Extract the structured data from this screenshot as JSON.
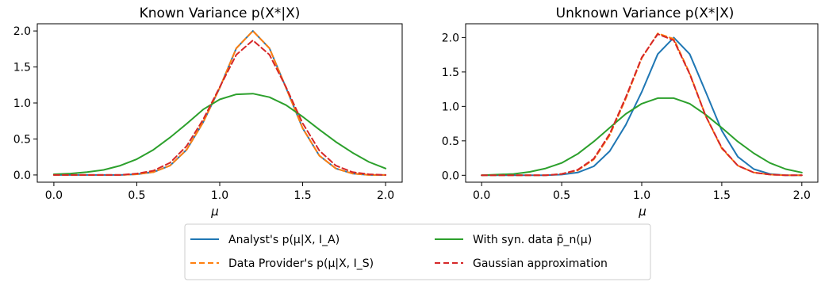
{
  "chart_data": [
    {
      "type": "line",
      "title": "Known Variance p(X*|X)",
      "xlabel": "μ",
      "ylabel": "",
      "xlim": [
        -0.1,
        2.1
      ],
      "ylim": [
        -0.1,
        2.1
      ],
      "xticks": [
        "0.0",
        "0.5",
        "1.0",
        "1.5",
        "2.0"
      ],
      "yticks": [
        "0.0",
        "0.5",
        "1.0",
        "1.5",
        "2.0"
      ],
      "grid": false,
      "series": [
        {
          "name": "Analyst's p(μ|X, I_A)",
          "color": "#1f77b4",
          "style": "solid",
          "x": [
            0.0,
            0.1,
            0.2,
            0.3,
            0.4,
            0.5,
            0.6,
            0.7,
            0.8,
            0.9,
            1.0,
            1.1,
            1.2,
            1.3,
            1.4,
            1.5,
            1.6,
            1.7,
            1.8,
            1.9,
            2.0
          ],
          "y": [
            0.0,
            0.0,
            0.0,
            0.0,
            0.0,
            0.01,
            0.04,
            0.13,
            0.35,
            0.73,
            1.21,
            1.76,
            2.0,
            1.76,
            1.21,
            0.65,
            0.27,
            0.09,
            0.02,
            0.0,
            0.0
          ]
        },
        {
          "name": "Data Provider's p(μ|X, I_S)",
          "color": "#ff7f0e",
          "style": "dashed",
          "x": [
            0.0,
            0.1,
            0.2,
            0.3,
            0.4,
            0.5,
            0.6,
            0.7,
            0.8,
            0.9,
            1.0,
            1.1,
            1.2,
            1.3,
            1.4,
            1.5,
            1.6,
            1.7,
            1.8,
            1.9,
            2.0
          ],
          "y": [
            0.0,
            0.0,
            0.0,
            0.0,
            0.0,
            0.01,
            0.04,
            0.13,
            0.35,
            0.73,
            1.21,
            1.76,
            2.0,
            1.76,
            1.21,
            0.65,
            0.27,
            0.09,
            0.02,
            0.0,
            0.0
          ]
        },
        {
          "name": "With syn. data p̄_n(μ)",
          "color": "#2ca02c",
          "style": "solid",
          "x": [
            0.0,
            0.1,
            0.2,
            0.3,
            0.4,
            0.5,
            0.6,
            0.7,
            0.8,
            0.9,
            1.0,
            1.1,
            1.2,
            1.3,
            1.4,
            1.5,
            1.6,
            1.7,
            1.8,
            1.9,
            2.0
          ],
          "y": [
            0.01,
            0.02,
            0.04,
            0.07,
            0.13,
            0.22,
            0.35,
            0.52,
            0.71,
            0.91,
            1.05,
            1.12,
            1.13,
            1.08,
            0.97,
            0.81,
            0.63,
            0.46,
            0.31,
            0.18,
            0.09
          ]
        },
        {
          "name": "Gaussian approximation",
          "color": "#d62728",
          "style": "dashed",
          "x": [
            0.0,
            0.1,
            0.2,
            0.3,
            0.4,
            0.5,
            0.6,
            0.7,
            0.8,
            0.9,
            1.0,
            1.1,
            1.2,
            1.3,
            1.4,
            1.5,
            1.6,
            1.7,
            1.8,
            1.9,
            2.0
          ],
          "y": [
            0.0,
            0.0,
            0.0,
            0.0,
            0.0,
            0.02,
            0.06,
            0.17,
            0.4,
            0.77,
            1.22,
            1.67,
            1.87,
            1.67,
            1.22,
            0.72,
            0.34,
            0.13,
            0.04,
            0.01,
            0.0
          ]
        }
      ]
    },
    {
      "type": "line",
      "title": "Unknown Variance p(X*|X)",
      "xlabel": "μ",
      "ylabel": "",
      "xlim": [
        -0.1,
        2.1
      ],
      "ylim": [
        -0.1,
        2.2
      ],
      "xticks": [
        "0.0",
        "0.5",
        "1.0",
        "1.5",
        "2.0"
      ],
      "yticks": [
        "0.0",
        "0.5",
        "1.0",
        "1.5",
        "2.0"
      ],
      "grid": false,
      "series": [
        {
          "name": "Analyst's p(μ|X, I_A)",
          "color": "#1f77b4",
          "style": "solid",
          "x": [
            0.0,
            0.1,
            0.2,
            0.3,
            0.4,
            0.5,
            0.6,
            0.7,
            0.8,
            0.9,
            1.0,
            1.1,
            1.2,
            1.3,
            1.4,
            1.5,
            1.6,
            1.7,
            1.8,
            1.9,
            2.0
          ],
          "y": [
            0.0,
            0.0,
            0.0,
            0.0,
            0.0,
            0.01,
            0.04,
            0.13,
            0.35,
            0.73,
            1.21,
            1.76,
            2.0,
            1.76,
            1.21,
            0.65,
            0.27,
            0.09,
            0.02,
            0.0,
            0.0
          ]
        },
        {
          "name": "Data Provider's p(μ|X, I_S)",
          "color": "#ff7f0e",
          "style": "dashed",
          "x": [
            0.0,
            0.1,
            0.2,
            0.3,
            0.4,
            0.5,
            0.6,
            0.7,
            0.8,
            0.9,
            1.0,
            1.1,
            1.2,
            1.3,
            1.4,
            1.5,
            1.6,
            1.7,
            1.8,
            1.9,
            2.0
          ],
          "y": [
            0.0,
            0.0,
            0.0,
            0.0,
            0.0,
            0.02,
            0.07,
            0.23,
            0.58,
            1.11,
            1.7,
            2.06,
            1.98,
            1.48,
            0.86,
            0.39,
            0.14,
            0.04,
            0.01,
            0.0,
            0.0
          ]
        },
        {
          "name": "With syn. data p̄_n(μ)",
          "color": "#2ca02c",
          "style": "solid",
          "x": [
            0.0,
            0.1,
            0.2,
            0.3,
            0.4,
            0.5,
            0.6,
            0.7,
            0.8,
            0.9,
            1.0,
            1.1,
            1.2,
            1.3,
            1.4,
            1.5,
            1.6,
            1.7,
            1.8,
            1.9,
            2.0
          ],
          "y": [
            0.0,
            0.01,
            0.02,
            0.05,
            0.1,
            0.18,
            0.31,
            0.49,
            0.69,
            0.89,
            1.04,
            1.12,
            1.12,
            1.04,
            0.88,
            0.69,
            0.49,
            0.32,
            0.18,
            0.09,
            0.04
          ]
        },
        {
          "name": "Gaussian approximation",
          "color": "#d62728",
          "style": "dashed",
          "x": [
            0.0,
            0.1,
            0.2,
            0.3,
            0.4,
            0.5,
            0.6,
            0.7,
            0.8,
            0.9,
            1.0,
            1.1,
            1.2,
            1.3,
            1.4,
            1.5,
            1.6,
            1.7,
            1.8,
            1.9,
            2.0
          ],
          "y": [
            0.0,
            0.0,
            0.0,
            0.0,
            0.0,
            0.02,
            0.08,
            0.24,
            0.6,
            1.13,
            1.71,
            2.05,
            1.96,
            1.47,
            0.86,
            0.4,
            0.14,
            0.04,
            0.01,
            0.0,
            0.0
          ]
        }
      ]
    }
  ],
  "legend": {
    "placement": "bottom-center",
    "entries": [
      {
        "label": "Analyst's p(μ|X, I_A)",
        "color": "#1f77b4",
        "style": "solid"
      },
      {
        "label": "Data Provider's p(μ|X, I_S)",
        "color": "#ff7f0e",
        "style": "dashed"
      },
      {
        "label": "With syn. data p̄_n(μ)",
        "color": "#2ca02c",
        "style": "solid"
      },
      {
        "label": "Gaussian approximation",
        "color": "#d62728",
        "style": "dashed"
      }
    ]
  }
}
